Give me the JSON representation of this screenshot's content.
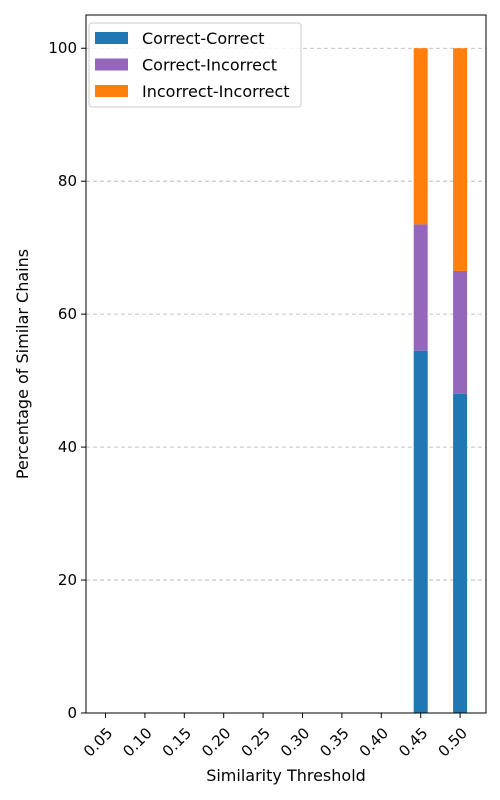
{
  "chart_data": {
    "type": "bar",
    "stacked": true,
    "categories": [
      "0.05",
      "0.10",
      "0.15",
      "0.20",
      "0.25",
      "0.30",
      "0.35",
      "0.40",
      "0.45",
      "0.50"
    ],
    "series": [
      {
        "name": "Correct-Correct",
        "color": "#1f77b4",
        "values": [
          0,
          0,
          0,
          0,
          0,
          0,
          0,
          0,
          54.5,
          48.0
        ]
      },
      {
        "name": "Correct-Incorrect",
        "color": "#9467bd",
        "values": [
          0,
          0,
          0,
          0,
          0,
          0,
          0,
          0,
          19.0,
          18.5
        ]
      },
      {
        "name": "Incorrect-Incorrect",
        "color": "#ff7f0e",
        "values": [
          0,
          0,
          0,
          0,
          0,
          0,
          0,
          0,
          26.5,
          33.5
        ]
      }
    ],
    "xlabel": "Similarity Threshold",
    "ylabel": "Percentage of Similar Chains",
    "ylim": [
      0,
      105
    ],
    "yticks": [
      "0",
      "20",
      "40",
      "60",
      "80",
      "100"
    ],
    "grid": "y-dashed",
    "legend_position": "top-left"
  }
}
